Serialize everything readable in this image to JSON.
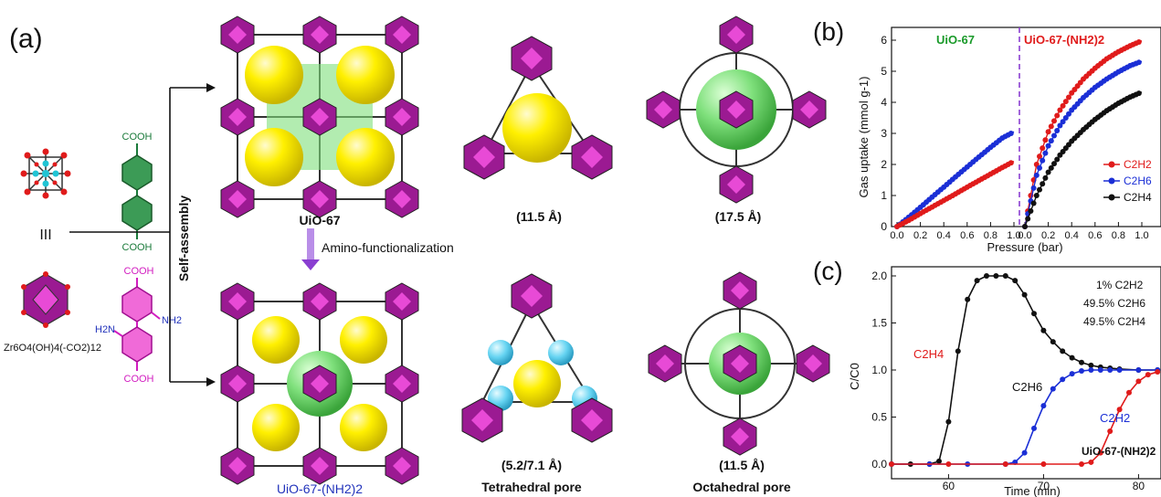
{
  "panel_a": {
    "label": "(a)",
    "components": {
      "cluster_symbol": "III",
      "cluster_formula": "Zr6O4(OH)4(-CO2)12",
      "linker1_cooh_top": "COOH",
      "linker1_cooh_bottom": "COOH",
      "linker2_cooh_top": "COOH",
      "linker2_cooh_bottom": "COOH",
      "linker2_nh2_left": "H2N",
      "linker2_nh2_right": "NH2"
    },
    "process": {
      "self_assembly": "Self-assembly",
      "amino_functionalization": "Amino-functionalization"
    },
    "frameworks": {
      "top_name": "UiO-67",
      "bottom_name": "UiO-67-(NH2)2"
    },
    "pores": {
      "top_tetrahedral_size": "(11.5 Å)",
      "top_octahedral_size": "(17.5 Å)",
      "bottom_tetrahedral_size": "(5.2/7.1 Å)",
      "bottom_octahedral_size": "(11.5 Å)",
      "tetrahedral_caption": "Tetrahedral pore",
      "octahedral_caption": "Octahedral pore"
    }
  },
  "panel_b": {
    "label": "(b)",
    "ylabel": "Gas uptake (mmol g-1)",
    "xlabel": "Pressure (bar)",
    "left_title": "UiO-67",
    "right_title": "UiO-67-(NH2)2",
    "yticks": [
      "0",
      "1",
      "2",
      "3",
      "4",
      "5",
      "6"
    ],
    "xticks_left": [
      "0.0",
      "0.2",
      "0.4",
      "0.6",
      "0.8",
      "1.0"
    ],
    "xticks_right": [
      "0.0",
      "0.2",
      "0.4",
      "0.6",
      "0.8",
      "1.0"
    ],
    "legend": [
      "C2H2",
      "C2H6",
      "C2H4"
    ],
    "colors": {
      "C2H2": "#e01b1b",
      "C2H6": "#1b2fd6",
      "C2H4": "#111111",
      "divider": "#8a3fd1"
    }
  },
  "panel_c": {
    "label": "(c)",
    "ylabel": "C/C0",
    "xlabel": "Time (min)",
    "yticks": [
      "0.0",
      "0.5",
      "1.0",
      "1.5",
      "2.0"
    ],
    "xticks": [
      "60",
      "70",
      "80"
    ],
    "feed": [
      "1% C2H2",
      "49.5% C2H6",
      "49.5% C2H4"
    ],
    "series_labels": {
      "C2H4": "C2H4",
      "C2H6": "C2H6",
      "C2H2": "C2H2"
    },
    "material": "UiO-67-(NH2)2"
  },
  "chart_data": [
    {
      "type": "scatter",
      "title": "UiO-67",
      "xlabel": "Pressure (bar)",
      "ylabel": "Gas uptake (mmol g-1)",
      "xlim": [
        0,
        1.0
      ],
      "ylim": [
        0,
        6
      ],
      "series": [
        {
          "name": "C2H6",
          "x": [
            0,
            0.1,
            0.2,
            0.3,
            0.4,
            0.5,
            0.6,
            0.7,
            0.8,
            0.9,
            1.0
          ],
          "y": [
            0,
            0.3,
            0.62,
            0.95,
            1.27,
            1.6,
            1.92,
            2.24,
            2.55,
            2.85,
            3.05
          ]
        },
        {
          "name": "C2H2",
          "x": [
            0,
            0.1,
            0.2,
            0.3,
            0.4,
            0.5,
            0.6,
            0.7,
            0.8,
            0.9,
            1.0
          ],
          "y": [
            0,
            0.2,
            0.42,
            0.63,
            0.84,
            1.05,
            1.27,
            1.48,
            1.69,
            1.9,
            2.1
          ]
        }
      ]
    },
    {
      "type": "scatter",
      "title": "UiO-67-(NH2)2",
      "xlabel": "Pressure (bar)",
      "ylabel": "Gas uptake (mmol g-1)",
      "xlim": [
        0,
        1.0
      ],
      "ylim": [
        0,
        6
      ],
      "series": [
        {
          "name": "C2H2",
          "x": [
            0,
            0.1,
            0.2,
            0.3,
            0.4,
            0.5,
            0.6,
            0.7,
            0.8,
            0.9,
            1.0
          ],
          "y": [
            0,
            2.0,
            3.05,
            3.75,
            4.3,
            4.75,
            5.1,
            5.4,
            5.63,
            5.82,
            5.98
          ]
        },
        {
          "name": "C2H6",
          "x": [
            0,
            0.1,
            0.2,
            0.3,
            0.4,
            0.5,
            0.6,
            0.7,
            0.8,
            0.9,
            1.0
          ],
          "y": [
            0,
            1.65,
            2.6,
            3.25,
            3.75,
            4.15,
            4.48,
            4.75,
            4.98,
            5.18,
            5.32
          ]
        },
        {
          "name": "C2H4",
          "x": [
            0,
            0.1,
            0.2,
            0.3,
            0.4,
            0.5,
            0.6,
            0.7,
            0.8,
            0.9,
            1.0
          ],
          "y": [
            0,
            1.0,
            1.75,
            2.3,
            2.75,
            3.12,
            3.45,
            3.73,
            3.97,
            4.17,
            4.33
          ]
        }
      ]
    },
    {
      "type": "line",
      "xlabel": "Time (min)",
      "ylabel": "C/C0",
      "xlim": [
        54,
        86
      ],
      "ylim": [
        -0.1,
        2.1
      ],
      "series": [
        {
          "name": "C2H4",
          "x": [
            54,
            56,
            58,
            59,
            60,
            61,
            62,
            63,
            64,
            65,
            66,
            67,
            68,
            69,
            70,
            71,
            72,
            73,
            74,
            75,
            76,
            77,
            78,
            80,
            82,
            84,
            86
          ],
          "y": [
            0,
            0,
            0,
            0.03,
            0.45,
            1.2,
            1.75,
            1.95,
            2.0,
            2.0,
            2.0,
            1.95,
            1.8,
            1.6,
            1.42,
            1.3,
            1.2,
            1.13,
            1.08,
            1.05,
            1.03,
            1.02,
            1.01,
            1.0,
            1.0,
            1.0,
            1.0
          ]
        },
        {
          "name": "C2H6",
          "x": [
            54,
            58,
            62,
            66,
            67,
            68,
            69,
            70,
            71,
            72,
            73,
            74,
            75,
            76,
            77,
            78,
            80,
            82,
            84,
            86
          ],
          "y": [
            0,
            0,
            0,
            0,
            0.02,
            0.12,
            0.38,
            0.62,
            0.8,
            0.9,
            0.96,
            0.99,
            1.0,
            1.0,
            1.0,
            1.0,
            1.0,
            1.0,
            1.0,
            1.0
          ]
        },
        {
          "name": "C2H2",
          "x": [
            54,
            60,
            66,
            70,
            74,
            75,
            76,
            77,
            78,
            79,
            80,
            81,
            82,
            83,
            84,
            86
          ],
          "y": [
            0,
            0,
            0,
            0,
            0,
            0.02,
            0.12,
            0.35,
            0.58,
            0.76,
            0.88,
            0.95,
            0.98,
            1.0,
            1.0,
            1.0
          ]
        }
      ]
    }
  ]
}
